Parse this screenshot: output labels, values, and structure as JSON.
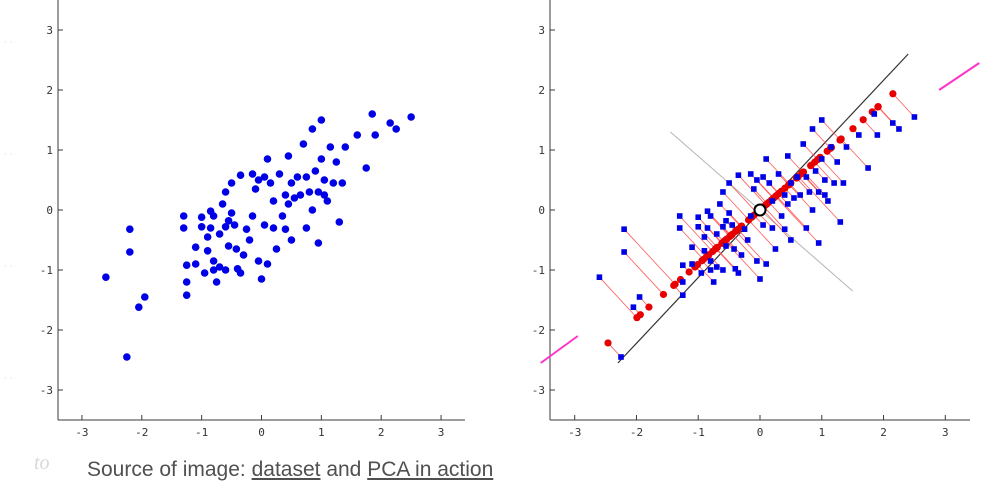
{
  "caption": {
    "prefix": "Source of image: ",
    "link1": "dataset",
    "middle": " and ",
    "link2": "PCA in action"
  },
  "ghost_text": "to",
  "chart_data": [
    {
      "type": "scatter",
      "title": "",
      "xlabel": "",
      "ylabel": "",
      "xlim": [
        -3.4,
        3.4
      ],
      "ylim": [
        -3.5,
        3.5
      ],
      "xticks": [
        -3,
        -2,
        -1,
        0,
        1,
        2,
        3
      ],
      "yticks": [
        -3,
        -2,
        -1,
        0,
        1,
        2,
        3
      ],
      "grid": false,
      "legend": "none",
      "colors": {
        "points": "#0000e6",
        "axis": "#3a3a3a"
      },
      "series": [
        {
          "points": [
            [
              -2.6,
              -1.12
            ],
            [
              -2.25,
              -2.45
            ],
            [
              -2.2,
              -0.7
            ],
            [
              -2.2,
              -0.32
            ],
            [
              -2.05,
              -1.62
            ],
            [
              -1.95,
              -1.45
            ],
            [
              -1.3,
              -0.1
            ],
            [
              -1.3,
              -0.3
            ],
            [
              -1.25,
              -0.92
            ],
            [
              -1.25,
              -1.2
            ],
            [
              -1.25,
              -1.42
            ],
            [
              -1.1,
              -0.9
            ],
            [
              -1.1,
              -0.62
            ],
            [
              -1.0,
              -0.28
            ],
            [
              -1.0,
              -0.12
            ],
            [
              -0.95,
              -1.05
            ],
            [
              -0.9,
              -0.45
            ],
            [
              -0.9,
              -0.68
            ],
            [
              -0.85,
              -0.3
            ],
            [
              -0.85,
              -0.02
            ],
            [
              -0.8,
              -1.0
            ],
            [
              -0.8,
              -0.85
            ],
            [
              -0.8,
              -0.1
            ],
            [
              -0.75,
              -1.2
            ],
            [
              -0.7,
              -0.4
            ],
            [
              -0.7,
              -0.95
            ],
            [
              -0.65,
              0.1
            ],
            [
              -0.6,
              -0.28
            ],
            [
              -0.6,
              -1.0
            ],
            [
              -0.6,
              0.3
            ],
            [
              -0.55,
              -0.18
            ],
            [
              -0.55,
              -0.6
            ],
            [
              -0.5,
              0.45
            ],
            [
              -0.5,
              -0.05
            ],
            [
              -0.45,
              -0.25
            ],
            [
              -0.42,
              -0.65
            ],
            [
              -0.4,
              -0.98
            ],
            [
              -0.35,
              0.58
            ],
            [
              -0.35,
              -1.05
            ],
            [
              -0.3,
              -0.75
            ],
            [
              -0.25,
              -0.32
            ],
            [
              -0.2,
              -0.5
            ],
            [
              -0.15,
              0.6
            ],
            [
              -0.15,
              -0.1
            ],
            [
              -0.1,
              0.35
            ],
            [
              -0.05,
              -0.85
            ],
            [
              -0.05,
              0.5
            ],
            [
              0.0,
              -1.15
            ],
            [
              0.05,
              0.55
            ],
            [
              0.05,
              -0.25
            ],
            [
              0.1,
              0.85
            ],
            [
              0.1,
              -0.9
            ],
            [
              0.15,
              0.45
            ],
            [
              0.2,
              -0.3
            ],
            [
              0.2,
              0.15
            ],
            [
              0.25,
              -0.65
            ],
            [
              0.3,
              0.6
            ],
            [
              0.35,
              -0.1
            ],
            [
              0.4,
              0.25
            ],
            [
              0.4,
              -0.32
            ],
            [
              0.45,
              0.9
            ],
            [
              0.45,
              0.1
            ],
            [
              0.5,
              0.45
            ],
            [
              0.5,
              -0.5
            ],
            [
              0.55,
              0.2
            ],
            [
              0.6,
              0.55
            ],
            [
              0.65,
              0.25
            ],
            [
              0.7,
              1.1
            ],
            [
              0.75,
              -0.3
            ],
            [
              0.75,
              0.55
            ],
            [
              0.8,
              0.3
            ],
            [
              0.85,
              0.0
            ],
            [
              0.85,
              1.35
            ],
            [
              0.9,
              0.65
            ],
            [
              0.95,
              -0.55
            ],
            [
              0.95,
              0.3
            ],
            [
              1.0,
              1.5
            ],
            [
              1.0,
              0.85
            ],
            [
              1.05,
              0.25
            ],
            [
              1.05,
              0.5
            ],
            [
              1.1,
              0.15
            ],
            [
              1.15,
              1.05
            ],
            [
              1.2,
              0.45
            ],
            [
              1.25,
              0.8
            ],
            [
              1.3,
              -0.2
            ],
            [
              1.35,
              0.45
            ],
            [
              1.4,
              1.05
            ],
            [
              1.6,
              1.25
            ],
            [
              1.75,
              0.7
            ],
            [
              1.85,
              1.6
            ],
            [
              1.9,
              1.25
            ],
            [
              2.15,
              1.45
            ],
            [
              2.25,
              1.35
            ],
            [
              2.5,
              1.55
            ]
          ]
        }
      ]
    },
    {
      "type": "scatter",
      "title": "",
      "xlabel": "",
      "ylabel": "",
      "xlim": [
        -3.4,
        3.4
      ],
      "ylim": [
        -3.5,
        3.5
      ],
      "xticks": [
        -3,
        -2,
        -1,
        0,
        1,
        2,
        3
      ],
      "yticks": [
        -3,
        -2,
        -1,
        0,
        1,
        2,
        3
      ],
      "grid": false,
      "legend": "none",
      "mean_point": [
        0,
        0
      ],
      "principal_direction_deg": 42,
      "colors": {
        "points": "#0000e6",
        "projections": "#e60000",
        "projection_lines": "#ff5a5a",
        "principal_axis": "#333333",
        "secondary_axis": "#b4b4b4",
        "extension_segments": "#ff33cc",
        "mean_marker": "#000000"
      },
      "principal_axis": [
        [
          -2.3,
          -2.55
        ],
        [
          2.4,
          2.6
        ]
      ],
      "secondary_axis": [
        [
          -1.45,
          1.3
        ],
        [
          1.5,
          -1.35
        ]
      ],
      "extension_segments": [
        [
          [
            -3.55,
            -2.55
          ],
          [
            -2.95,
            -2.1
          ]
        ],
        [
          [
            2.9,
            2.0
          ],
          [
            3.55,
            2.45
          ]
        ]
      ],
      "series": [
        {
          "points": [
            [
              -2.6,
              -1.12
            ],
            [
              -2.25,
              -2.45
            ],
            [
              -2.2,
              -0.7
            ],
            [
              -2.2,
              -0.32
            ],
            [
              -2.05,
              -1.62
            ],
            [
              -1.95,
              -1.45
            ],
            [
              -1.3,
              -0.1
            ],
            [
              -1.3,
              -0.3
            ],
            [
              -1.25,
              -0.92
            ],
            [
              -1.25,
              -1.2
            ],
            [
              -1.25,
              -1.42
            ],
            [
              -1.1,
              -0.9
            ],
            [
              -1.1,
              -0.62
            ],
            [
              -1.0,
              -0.28
            ],
            [
              -1.0,
              -0.12
            ],
            [
              -0.95,
              -1.05
            ],
            [
              -0.9,
              -0.45
            ],
            [
              -0.9,
              -0.68
            ],
            [
              -0.85,
              -0.3
            ],
            [
              -0.85,
              -0.02
            ],
            [
              -0.8,
              -1.0
            ],
            [
              -0.8,
              -0.85
            ],
            [
              -0.8,
              -0.1
            ],
            [
              -0.75,
              -1.2
            ],
            [
              -0.7,
              -0.4
            ],
            [
              -0.7,
              -0.95
            ],
            [
              -0.65,
              0.1
            ],
            [
              -0.6,
              -0.28
            ],
            [
              -0.6,
              -1.0
            ],
            [
              -0.6,
              0.3
            ],
            [
              -0.55,
              -0.18
            ],
            [
              -0.55,
              -0.6
            ],
            [
              -0.5,
              0.45
            ],
            [
              -0.5,
              -0.05
            ],
            [
              -0.45,
              -0.25
            ],
            [
              -0.42,
              -0.65
            ],
            [
              -0.4,
              -0.98
            ],
            [
              -0.35,
              0.58
            ],
            [
              -0.35,
              -1.05
            ],
            [
              -0.3,
              -0.75
            ],
            [
              -0.25,
              -0.32
            ],
            [
              -0.2,
              -0.5
            ],
            [
              -0.15,
              0.6
            ],
            [
              -0.15,
              -0.1
            ],
            [
              -0.1,
              0.35
            ],
            [
              -0.05,
              -0.85
            ],
            [
              -0.05,
              0.5
            ],
            [
              0.0,
              -1.15
            ],
            [
              0.05,
              0.55
            ],
            [
              0.05,
              -0.25
            ],
            [
              0.1,
              0.85
            ],
            [
              0.1,
              -0.9
            ],
            [
              0.15,
              0.45
            ],
            [
              0.2,
              -0.3
            ],
            [
              0.2,
              0.15
            ],
            [
              0.25,
              -0.65
            ],
            [
              0.3,
              0.6
            ],
            [
              0.35,
              -0.1
            ],
            [
              0.4,
              0.25
            ],
            [
              0.4,
              -0.32
            ],
            [
              0.45,
              0.9
            ],
            [
              0.45,
              0.1
            ],
            [
              0.5,
              0.45
            ],
            [
              0.5,
              -0.5
            ],
            [
              0.55,
              0.2
            ],
            [
              0.6,
              0.55
            ],
            [
              0.65,
              0.25
            ],
            [
              0.7,
              1.1
            ],
            [
              0.75,
              -0.3
            ],
            [
              0.75,
              0.55
            ],
            [
              0.8,
              0.3
            ],
            [
              0.85,
              0.0
            ],
            [
              0.85,
              1.35
            ],
            [
              0.9,
              0.65
            ],
            [
              0.95,
              -0.55
            ],
            [
              0.95,
              0.3
            ],
            [
              1.0,
              1.5
            ],
            [
              1.0,
              0.85
            ],
            [
              1.05,
              0.25
            ],
            [
              1.05,
              0.5
            ],
            [
              1.1,
              0.15
            ],
            [
              1.15,
              1.05
            ],
            [
              1.2,
              0.45
            ],
            [
              1.25,
              0.8
            ],
            [
              1.3,
              -0.2
            ],
            [
              1.35,
              0.45
            ],
            [
              1.4,
              1.05
            ],
            [
              1.6,
              1.25
            ],
            [
              1.75,
              0.7
            ],
            [
              1.85,
              1.6
            ],
            [
              1.9,
              1.25
            ],
            [
              2.15,
              1.45
            ],
            [
              2.25,
              1.35
            ],
            [
              2.5,
              1.55
            ]
          ]
        }
      ]
    }
  ]
}
